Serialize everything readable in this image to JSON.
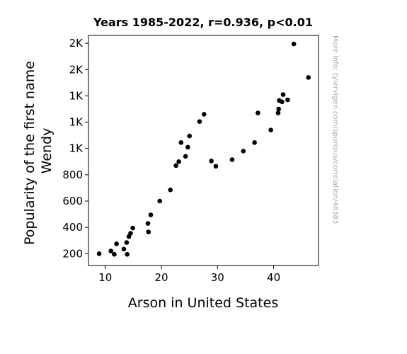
{
  "chart_data": {
    "type": "scatter",
    "title": "Years 1985-2022, r=0.936, p<0.01",
    "xlabel": "Arson in United States",
    "ylabel": [
      "Popularity of the first name",
      "Wendy"
    ],
    "watermark": "More info: tylervigen.com/spurious/correlation/48383",
    "xlim": [
      7,
      48
    ],
    "ylim": [
      110,
      1860
    ],
    "x_ticks": [
      {
        "value": 10,
        "label": "10"
      },
      {
        "value": 20,
        "label": "20"
      },
      {
        "value": 30,
        "label": "30"
      },
      {
        "value": 40,
        "label": "40"
      }
    ],
    "y_ticks": [
      {
        "value": 200,
        "label": "200"
      },
      {
        "value": 400,
        "label": "400"
      },
      {
        "value": 600,
        "label": "600"
      },
      {
        "value": 800,
        "label": "800"
      },
      {
        "value": 1000,
        "label": "1K"
      },
      {
        "value": 1200,
        "label": "1K"
      },
      {
        "value": 1400,
        "label": "1K"
      },
      {
        "value": 1600,
        "label": "2K"
      },
      {
        "value": 1800,
        "label": "2K"
      }
    ],
    "marker_color": "#000000",
    "grid": false,
    "points": [
      {
        "x": 8.9,
        "y": 200
      },
      {
        "x": 11.0,
        "y": 220
      },
      {
        "x": 11.6,
        "y": 195
      },
      {
        "x": 12.0,
        "y": 275
      },
      {
        "x": 13.3,
        "y": 235
      },
      {
        "x": 13.8,
        "y": 285
      },
      {
        "x": 13.9,
        "y": 195
      },
      {
        "x": 14.2,
        "y": 330
      },
      {
        "x": 14.5,
        "y": 355
      },
      {
        "x": 14.9,
        "y": 395
      },
      {
        "x": 17.6,
        "y": 430
      },
      {
        "x": 17.7,
        "y": 365
      },
      {
        "x": 18.1,
        "y": 495
      },
      {
        "x": 19.7,
        "y": 600
      },
      {
        "x": 21.6,
        "y": 685
      },
      {
        "x": 22.6,
        "y": 870
      },
      {
        "x": 23.1,
        "y": 900
      },
      {
        "x": 23.5,
        "y": 1045
      },
      {
        "x": 24.3,
        "y": 940
      },
      {
        "x": 24.7,
        "y": 1010
      },
      {
        "x": 25.0,
        "y": 1095
      },
      {
        "x": 26.8,
        "y": 1205
      },
      {
        "x": 27.6,
        "y": 1260
      },
      {
        "x": 28.9,
        "y": 905
      },
      {
        "x": 29.7,
        "y": 865
      },
      {
        "x": 32.6,
        "y": 915
      },
      {
        "x": 34.6,
        "y": 980
      },
      {
        "x": 36.6,
        "y": 1045
      },
      {
        "x": 37.2,
        "y": 1270
      },
      {
        "x": 39.5,
        "y": 1140
      },
      {
        "x": 40.8,
        "y": 1270
      },
      {
        "x": 40.9,
        "y": 1300
      },
      {
        "x": 41.0,
        "y": 1365
      },
      {
        "x": 41.5,
        "y": 1355
      },
      {
        "x": 41.7,
        "y": 1410
      },
      {
        "x": 42.5,
        "y": 1370
      },
      {
        "x": 43.6,
        "y": 1795
      },
      {
        "x": 46.2,
        "y": 1540
      }
    ]
  }
}
